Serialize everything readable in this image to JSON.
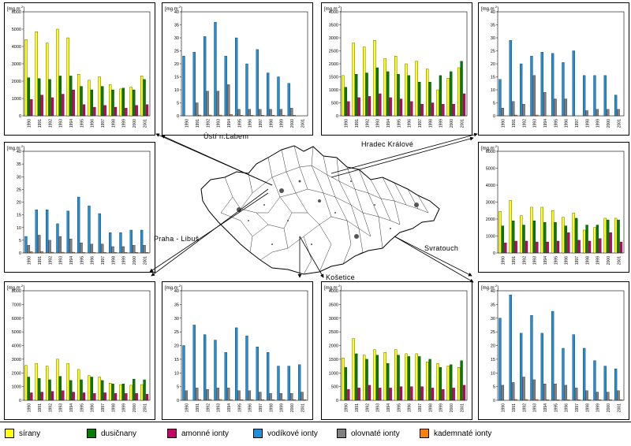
{
  "unit_label": "[mg.m",
  "unit_sup": "-2",
  "unit_close": "]",
  "cities": {
    "usti": "Ústí n.Labem",
    "hradec": "Hradec Králové",
    "praha": "Praha - Libuš",
    "svratouch": "Svratouch",
    "kosetice": "Košetice"
  },
  "legend": [
    {
      "label": "sírany",
      "color": "#ffff00"
    },
    {
      "label": "dusičnany",
      "color": "#008000"
    },
    {
      "label": "amonné ionty",
      "color": "#cc0066"
    },
    {
      "label": "vodíkové ionty",
      "color": "#1e8fd8"
    },
    {
      "label": "olovnaté ionty",
      "color": "#808080"
    },
    {
      "label": "kademnaté ionty",
      "color": "#ff8000"
    }
  ],
  "chart_data": [
    {
      "id": "tl",
      "type": "bar",
      "title": "",
      "categories": [
        "1990",
        "1991",
        "1992",
        "1993",
        "1994",
        "1995",
        "1996",
        "1997",
        "1998",
        "1999",
        "2000",
        "2001"
      ],
      "ylim": [
        0,
        6000
      ],
      "yticks": [
        "0",
        "1000",
        "2000",
        "3000",
        "4000",
        "5000",
        "6000"
      ],
      "series": [
        {
          "name": "sírany",
          "color": "#ffff00",
          "values": [
            4400,
            4850,
            4200,
            5000,
            4500,
            2400,
            2050,
            2250,
            1800,
            1550,
            1650,
            2300
          ]
        },
        {
          "name": "dusičnany",
          "color": "#008000",
          "values": [
            2200,
            2150,
            2100,
            2300,
            2300,
            1700,
            1500,
            1700,
            1500,
            1600,
            1500,
            2100
          ]
        },
        {
          "name": "amonné ionty",
          "color": "#cc0066",
          "values": [
            950,
            1200,
            1050,
            1250,
            1500,
            650,
            500,
            600,
            500,
            450,
            600,
            650
          ]
        }
      ]
    },
    {
      "id": "tm1",
      "type": "bar",
      "title": "",
      "categories": [
        "1990",
        "1991",
        "1992",
        "1993",
        "1994",
        "1995",
        "1996",
        "1997",
        "1998",
        "1999",
        "2000",
        "2001"
      ],
      "ylim": [
        0,
        40
      ],
      "yticks": [
        "0",
        "5",
        "10",
        "15",
        "20",
        "25",
        "30",
        "35",
        "40"
      ],
      "series": [
        {
          "name": "vodíkové ionty",
          "color": "#1e8fd8",
          "values": [
            23,
            24.5,
            30.5,
            36,
            23,
            30,
            20,
            25.5,
            16.5,
            15,
            12.5,
            0
          ]
        },
        {
          "name": "olovnaté ionty",
          "color": "#808080",
          "values": [
            0,
            5,
            9.5,
            9.5,
            12,
            2.5,
            2.5,
            2.5,
            2.5,
            2.5,
            3,
            0
          ]
        },
        {
          "name": "kademnaté ionty",
          "color": "#ff8000",
          "values": [
            0,
            0.3,
            0.3,
            0.3,
            0.5,
            0.2,
            0.2,
            0.2,
            0.2,
            0.2,
            0.2,
            0
          ]
        }
      ]
    },
    {
      "id": "tm2",
      "type": "bar",
      "title": "",
      "categories": [
        "1990",
        "1991",
        "1992",
        "1993",
        "1994",
        "1995",
        "1996",
        "1997",
        "1998",
        "1999",
        "2000",
        "2001"
      ],
      "ylim": [
        0,
        4000
      ],
      "yticks": [
        "0",
        "500",
        "1000",
        "1500",
        "2000",
        "2500",
        "3000",
        "3500",
        "4000"
      ],
      "series": [
        {
          "name": "sírany",
          "color": "#ffff00",
          "values": [
            1550,
            2800,
            2650,
            2900,
            2200,
            2300,
            2000,
            2100,
            1800,
            1000,
            1450,
            1850
          ]
        },
        {
          "name": "dusičnany",
          "color": "#008000",
          "values": [
            1100,
            1600,
            1650,
            1850,
            1700,
            1600,
            1550,
            1300,
            1300,
            1550,
            1700,
            2100
          ]
        },
        {
          "name": "amonné ionty",
          "color": "#cc0066",
          "values": [
            550,
            700,
            750,
            850,
            700,
            650,
            550,
            450,
            500,
            450,
            450,
            850
          ]
        }
      ]
    },
    {
      "id": "tr",
      "type": "bar",
      "title": "",
      "categories": [
        "1990",
        "1991",
        "1992",
        "1993",
        "1994",
        "1995",
        "1996",
        "1997",
        "1998",
        "1999",
        "2000",
        "2001"
      ],
      "ylim": [
        0,
        40
      ],
      "yticks": [
        "0",
        "5",
        "10",
        "15",
        "20",
        "25",
        "30",
        "35",
        "40"
      ],
      "series": [
        {
          "name": "vodíkové ionty",
          "color": "#1e8fd8",
          "values": [
            14,
            29,
            20,
            23,
            24.5,
            24,
            20.5,
            25,
            15.5,
            15.5,
            15.5,
            8
          ]
        },
        {
          "name": "olovnaté ionty",
          "color": "#808080",
          "values": [
            3,
            5.5,
            4.5,
            15.5,
            9,
            6.5,
            6.5,
            0,
            2,
            2.5,
            2.5,
            2.5
          ]
        },
        {
          "name": "kademnaté ionty",
          "color": "#ff8000",
          "values": [
            0,
            0.3,
            0,
            0.3,
            0,
            0,
            0,
            0,
            0,
            0,
            0,
            0
          ]
        }
      ]
    },
    {
      "id": "ml",
      "type": "bar",
      "title": "",
      "categories": [
        "1990",
        "1991",
        "1992",
        "1993",
        "1994",
        "1995",
        "1996",
        "1997",
        "1998",
        "1999",
        "2000",
        "2001"
      ],
      "ylim": [
        0,
        40
      ],
      "yticks": [
        "0",
        "5",
        "10",
        "15",
        "20",
        "25",
        "30",
        "35",
        "40"
      ],
      "series": [
        {
          "name": "vodíkové ionty",
          "color": "#1e8fd8",
          "values": [
            6.5,
            17,
            17,
            11.5,
            16.5,
            22,
            18.5,
            15.5,
            8,
            8,
            9,
            9
          ]
        },
        {
          "name": "olovnaté ionty",
          "color": "#808080",
          "values": [
            3,
            7,
            5,
            6.5,
            5.5,
            4,
            3.5,
            3.5,
            2.5,
            2.5,
            3,
            3
          ]
        },
        {
          "name": "kademnaté ionty",
          "color": "#ff8000",
          "values": [
            0.5,
            0.5,
            0.3,
            0.3,
            0.3,
            0.2,
            0.2,
            0.2,
            0.2,
            0.2,
            0.2,
            0.2
          ]
        }
      ]
    },
    {
      "id": "mr",
      "type": "bar",
      "title": "",
      "categories": [
        "1990",
        "1991",
        "1992",
        "1993",
        "1994",
        "1995",
        "1996",
        "1997",
        "1998",
        "1999",
        "2000",
        "2001"
      ],
      "ylim": [
        0,
        6000
      ],
      "yticks": [
        "0",
        "1000",
        "2000",
        "3000",
        "4000",
        "5000",
        "6000"
      ],
      "series": [
        {
          "name": "sírany",
          "color": "#ffff00",
          "values": [
            2450,
            3100,
            2200,
            2700,
            2700,
            2500,
            2100,
            2350,
            1350,
            1500,
            2050,
            2050
          ]
        },
        {
          "name": "dusičnany",
          "color": "#008000",
          "values": [
            1600,
            1900,
            1650,
            1900,
            1800,
            1800,
            1600,
            2050,
            1650,
            1650,
            1950,
            1950
          ]
        },
        {
          "name": "amonné ionty",
          "color": "#cc0066",
          "values": [
            600,
            700,
            700,
            650,
            650,
            700,
            1200,
            750,
            700,
            850,
            1200,
            650
          ]
        }
      ]
    },
    {
      "id": "bl",
      "type": "bar",
      "title": "",
      "categories": [
        "1990",
        "1991",
        "1992",
        "1993",
        "1994",
        "1995",
        "1996",
        "1997",
        "1998",
        "1999",
        "2000",
        "2001"
      ],
      "ylim": [
        0,
        8000
      ],
      "yticks": [
        "0",
        "1000",
        "2000",
        "3000",
        "4000",
        "5000",
        "6000",
        "7000",
        "8000"
      ],
      "series": [
        {
          "name": "sírany",
          "color": "#ffff00",
          "values": [
            2550,
            2700,
            2500,
            3000,
            2700,
            2250,
            1800,
            1700,
            1250,
            1150,
            1100,
            1150
          ]
        },
        {
          "name": "dusičnany",
          "color": "#008000",
          "values": [
            1700,
            1600,
            1500,
            1750,
            1450,
            1500,
            1700,
            1450,
            1200,
            1200,
            1550,
            1500
          ]
        },
        {
          "name": "amonné ionty",
          "color": "#cc0066",
          "values": [
            550,
            600,
            650,
            700,
            600,
            550,
            500,
            550,
            500,
            500,
            500,
            450
          ]
        }
      ]
    },
    {
      "id": "bm1",
      "type": "bar",
      "title": "",
      "categories": [
        "1990",
        "1991",
        "1992",
        "1993",
        "1994",
        "1995",
        "1996",
        "1997",
        "1998",
        "1999",
        "2000",
        "2001"
      ],
      "ylim": [
        0,
        40
      ],
      "yticks": [
        "0",
        "5",
        "10",
        "15",
        "20",
        "25",
        "30",
        "35",
        "40"
      ],
      "series": [
        {
          "name": "vodíkové ionty",
          "color": "#1e8fd8",
          "values": [
            20,
            27.5,
            24,
            22,
            17.5,
            26.5,
            23.5,
            19.5,
            17.5,
            12.5,
            12.5,
            13
          ]
        },
        {
          "name": "olovnaté ionty",
          "color": "#808080",
          "values": [
            3.5,
            4.5,
            4,
            4.5,
            4.5,
            3.5,
            3.5,
            3,
            2.5,
            2.5,
            2.5,
            3
          ]
        },
        {
          "name": "kademnaté ionty",
          "color": "#ff8000",
          "values": [
            0,
            0.3,
            0.3,
            0.3,
            0.2,
            0.2,
            0.2,
            0.2,
            0.2,
            0.2,
            0.2,
            0.2
          ]
        }
      ]
    },
    {
      "id": "bm2",
      "type": "bar",
      "title": "",
      "categories": [
        "1990",
        "1991",
        "1992",
        "1993",
        "1994",
        "1995",
        "1996",
        "1997",
        "1998",
        "1999",
        "2000",
        "2001"
      ],
      "ylim": [
        0,
        4000
      ],
      "yticks": [
        "0",
        "500",
        "1000",
        "1500",
        "2000",
        "2500",
        "3000",
        "3500",
        "4000"
      ],
      "series": [
        {
          "name": "sírany",
          "color": "#ffff00",
          "values": [
            1550,
            2250,
            1650,
            1850,
            1750,
            1850,
            1700,
            1700,
            1400,
            1350,
            1250,
            1200
          ]
        },
        {
          "name": "dusičnany",
          "color": "#008000",
          "values": [
            1200,
            1700,
            1500,
            1650,
            1350,
            1650,
            1600,
            1600,
            1500,
            1200,
            1300,
            1450
          ]
        },
        {
          "name": "amonné ionty",
          "color": "#cc0066",
          "values": [
            400,
            450,
            550,
            450,
            450,
            500,
            500,
            500,
            450,
            400,
            450,
            550
          ]
        }
      ]
    },
    {
      "id": "br",
      "type": "bar",
      "title": "",
      "categories": [
        "1990",
        "1991",
        "1992",
        "1993",
        "1994",
        "1995",
        "1996",
        "1997",
        "1998",
        "1999",
        "2000",
        "2001"
      ],
      "ylim": [
        0,
        40
      ],
      "yticks": [
        "0",
        "5",
        "10",
        "15",
        "20",
        "25",
        "30",
        "35",
        "40"
      ],
      "series": [
        {
          "name": "vodíkové ionty",
          "color": "#1e8fd8",
          "values": [
            30,
            38.5,
            24.5,
            31,
            24.5,
            32.5,
            19,
            24,
            19,
            14.5,
            12.5,
            11.5
          ]
        },
        {
          "name": "olovnaté ionty",
          "color": "#808080",
          "values": [
            5.5,
            6.5,
            8.5,
            7.5,
            6,
            6,
            5.5,
            4.5,
            3.5,
            3,
            3,
            3.5
          ]
        },
        {
          "name": "kademnaté ionty",
          "color": "#ff8000",
          "values": [
            0,
            0.3,
            0.3,
            0.3,
            0.2,
            0.2,
            0.2,
            0.2,
            0.2,
            0.2,
            0.2,
            0.2
          ]
        }
      ]
    }
  ]
}
